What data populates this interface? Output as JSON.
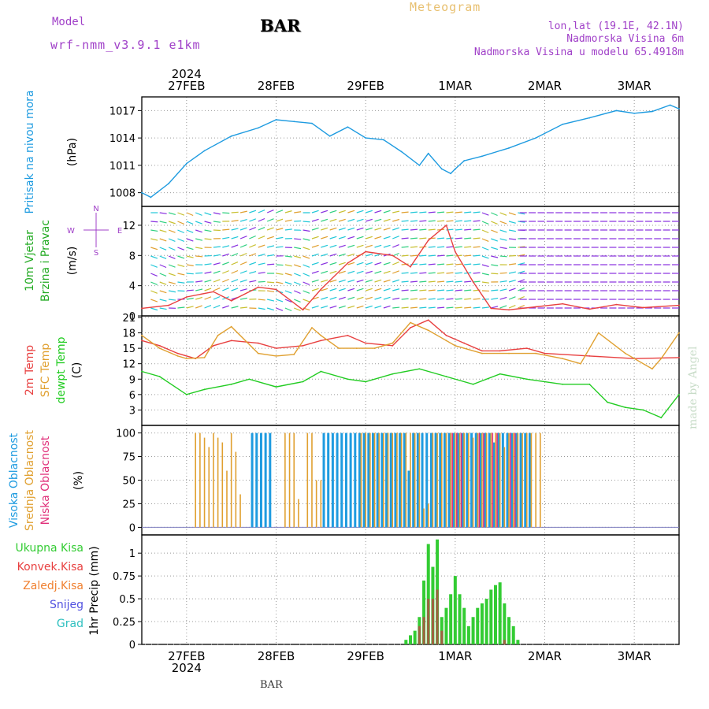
{
  "header": {
    "model_label": "Model",
    "model_name": "wrf-nmm_v3.9.1 e1km",
    "station": "BAR",
    "title": "Meteogram",
    "lonlat": "lon,lat (19.1E, 42.1N)",
    "elevation": "Nadmorska Visina 6m",
    "model_elevation": "Nadmorska Visina u modelu 65.4918m"
  },
  "watermark": "made by Angel",
  "footer_station": "BAR",
  "time_axis": {
    "year": "2024",
    "labels": [
      "27FEB",
      "28FEB",
      "29FEB",
      "1MAR",
      "2MAR",
      "3MAR"
    ],
    "start_day": 26.5,
    "end_day": 32.5
  },
  "colors": {
    "pressure": "#1e9be0",
    "temp2m": "#e84040",
    "sfc_temp": "#e0a030",
    "dewpt": "#22cc22",
    "high_cloud": "#1e9be0",
    "mid_cloud": "#e0a030",
    "low_cloud": "#e0307a",
    "total_precip": "#33cc33",
    "conv_precip": "#e84040",
    "frozen_precip": "#f08030",
    "snow": "#5050e0",
    "hail": "#30c0c0",
    "wind_speed": "#e84040"
  },
  "panels": {
    "pressure": {
      "label": "Pritisak na nivou mora",
      "unit": "(hPa)",
      "yticks": [
        "1008",
        "1011",
        "1014",
        "1017"
      ],
      "ylim": [
        1006.5,
        1018.5
      ]
    },
    "wind": {
      "label1": "10m Vjetar",
      "label2": "Brzina i Pravac",
      "unit": "(m/s)",
      "yticks": [
        "0",
        "4",
        "8",
        "12"
      ],
      "ylim": [
        0,
        14.5
      ],
      "compass": {
        "n": "N",
        "s": "S",
        "e": "E",
        "w": "W"
      }
    },
    "temperature": {
      "label1": "2m Temp",
      "label2": "SFC Temp",
      "label3": "dewpt Temp",
      "unit": "(C)",
      "yticks": [
        "3",
        "6",
        "9",
        "12",
        "15",
        "18",
        "21"
      ],
      "ylim": [
        0,
        21.3
      ]
    },
    "clouds": {
      "label1": "Visoka Oblacnost",
      "label2": "Srednja Oblacnost",
      "label3": "Niska Oblacnost",
      "unit": "(%)",
      "yticks": [
        "0",
        "25",
        "50",
        "75",
        "100"
      ],
      "ylim": [
        -8,
        108
      ]
    },
    "precip": {
      "legend": [
        "Ukupna Kisa",
        "Konvek.Kisa",
        "Zaledj.Kisa",
        "Snijeg",
        "Grad"
      ],
      "unit": "1hr Precip (mm)",
      "yticks": [
        "0",
        "0.25",
        "0.5",
        "0.75",
        "1"
      ],
      "ylim": [
        0,
        1.2
      ]
    }
  },
  "chart_data": [
    {
      "type": "line",
      "name": "Pritisak na nivou mora",
      "x_unit": "day of Feb 2024",
      "x": [
        26.5,
        26.6,
        26.8,
        27.0,
        27.2,
        27.5,
        27.8,
        28.0,
        28.2,
        28.4,
        28.6,
        28.8,
        29.0,
        29.2,
        29.4,
        29.6,
        29.7,
        29.85,
        29.95,
        30.0,
        30.1,
        30.3,
        30.6,
        30.9,
        31.2,
        31.5,
        31.8,
        32.0,
        32.2,
        32.4,
        32.5
      ],
      "y": [
        1008,
        1007.5,
        1009,
        1011.2,
        1012.6,
        1014.2,
        1015.1,
        1016.0,
        1015.8,
        1015.6,
        1014.2,
        1015.2,
        1014.0,
        1013.8,
        1012.5,
        1011.0,
        1012.3,
        1010.6,
        1010.1,
        1010.6,
        1011.5,
        1012.0,
        1012.9,
        1014.0,
        1015.5,
        1016.2,
        1017.0,
        1016.7,
        1016.9,
        1017.6,
        1017.2
      ]
    },
    {
      "type": "line",
      "name": "10m Vjetar Brzina",
      "x": [
        26.5,
        26.8,
        27.0,
        27.3,
        27.5,
        27.8,
        28.0,
        28.3,
        28.5,
        28.8,
        29.0,
        29.3,
        29.5,
        29.7,
        29.9,
        30.0,
        30.2,
        30.4,
        30.6,
        30.9,
        31.2,
        31.5,
        31.8,
        32.1,
        32.5
      ],
      "y": [
        1.0,
        1.4,
        2.5,
        3.2,
        2.0,
        3.8,
        3.5,
        0.8,
        3.5,
        7.0,
        8.5,
        8.0,
        6.5,
        10.0,
        12.0,
        8.5,
        4.5,
        1.0,
        0.8,
        1.2,
        1.6,
        0.9,
        1.5,
        1.1,
        1.4
      ]
    },
    {
      "type": "line",
      "series": [
        {
          "name": "2m Temp",
          "x": [
            26.5,
            26.7,
            26.9,
            27.1,
            27.3,
            27.5,
            27.8,
            28.0,
            28.3,
            28.5,
            28.8,
            29.0,
            29.3,
            29.5,
            29.7,
            29.9,
            30.1,
            30.3,
            30.5,
            30.8,
            31.0,
            31.5,
            32.0,
            32.5
          ],
          "y": [
            16.5,
            15.5,
            14.0,
            13.0,
            15.5,
            16.5,
            16.0,
            15.0,
            15.5,
            16.5,
            17.5,
            16.0,
            15.5,
            19.0,
            20.5,
            17.5,
            16.0,
            14.5,
            14.5,
            15.0,
            14.0,
            13.5,
            13.0,
            13.2
          ]
        },
        {
          "name": "SFC Temp",
          "x": [
            26.5,
            26.7,
            26.9,
            27.0,
            27.2,
            27.35,
            27.5,
            27.8,
            28.0,
            28.2,
            28.4,
            28.5,
            28.7,
            28.9,
            29.1,
            29.3,
            29.5,
            29.7,
            29.9,
            30.0,
            30.3,
            30.6,
            30.9,
            31.2,
            31.4,
            31.6,
            31.9,
            32.2,
            32.3,
            32.5
          ],
          "y": [
            17.5,
            15.0,
            13.5,
            13.0,
            13.2,
            17.5,
            19.2,
            14.0,
            13.5,
            13.8,
            19.0,
            17.5,
            15.0,
            15.0,
            15.0,
            16.0,
            20.0,
            18.5,
            16.5,
            15.5,
            14.0,
            14.0,
            14.0,
            13.0,
            12.0,
            18.0,
            14.0,
            11.0,
            13.0,
            18.0
          ]
        },
        {
          "name": "dewpt Temp",
          "x": [
            26.5,
            26.7,
            27.0,
            27.2,
            27.5,
            27.7,
            28.0,
            28.3,
            28.5,
            28.8,
            29.0,
            29.3,
            29.6,
            29.9,
            30.2,
            30.5,
            30.8,
            31.2,
            31.5,
            31.7,
            31.9,
            32.1,
            32.3,
            32.5
          ],
          "y": [
            10.5,
            9.5,
            6.0,
            7.0,
            8.0,
            9.0,
            7.5,
            8.5,
            10.5,
            9.0,
            8.5,
            10.0,
            11.0,
            9.5,
            8.0,
            10.0,
            9.0,
            8.0,
            8.0,
            4.5,
            3.5,
            3.0,
            1.5,
            6.0
          ]
        }
      ]
    },
    {
      "type": "bar",
      "name": "Oblacnost",
      "series": [
        {
          "name": "Visoka Oblacnost",
          "x": [
            27.1,
            27.2,
            27.3,
            27.4,
            27.45,
            27.5,
            27.55,
            27.6,
            27.65,
            27.7,
            27.75,
            27.8,
            27.85,
            27.9,
            27.95,
            28.0,
            28.05,
            28.1,
            28.3,
            28.35,
            28.4,
            28.45,
            28.5,
            28.55,
            28.6,
            28.65,
            28.7,
            28.75,
            28.8,
            28.85,
            28.9,
            28.95,
            29.0,
            29.05,
            29.1,
            29.15,
            29.2,
            29.25,
            29.3,
            29.35,
            29.4,
            29.45,
            29.5,
            29.55,
            29.6,
            29.65,
            29.7,
            29.75,
            29.8,
            29.85,
            29.9,
            29.95,
            30.0,
            30.05,
            30.1,
            30.15,
            30.2,
            30.25,
            30.3,
            30.35,
            30.4,
            30.45,
            30.5,
            30.55,
            30.6,
            30.65,
            30.7,
            30.75,
            30.8,
            30.85
          ],
          "y": [
            0,
            0,
            0,
            0,
            0,
            0,
            0,
            0,
            0,
            0,
            100,
            100,
            100,
            100,
            100,
            0,
            0,
            0,
            0,
            0,
            0,
            0,
            0,
            100,
            100,
            100,
            100,
            100,
            100,
            100,
            100,
            100,
            100,
            100,
            100,
            100,
            100,
            100,
            100,
            100,
            100,
            100,
            60,
            100,
            100,
            100,
            100,
            100,
            100,
            100,
            100,
            100,
            100,
            100,
            100,
            100,
            100,
            100,
            100,
            100,
            100,
            90,
            100,
            100,
            100,
            100,
            100,
            100,
            100,
            100
          ]
        },
        {
          "name": "Srednja Oblacnost",
          "x": [
            27.1,
            27.15,
            27.2,
            27.25,
            27.3,
            27.35,
            27.4,
            27.45,
            27.5,
            27.55,
            27.6,
            27.65,
            28.1,
            28.15,
            28.2,
            28.25,
            28.3,
            28.35,
            28.4,
            28.45,
            28.5,
            28.55,
            28.6,
            28.65,
            28.7,
            28.75,
            28.8,
            28.85,
            28.9,
            28.95,
            29.0,
            29.05,
            29.1,
            29.15,
            29.2,
            29.25,
            29.3,
            29.35,
            29.4,
            29.45,
            29.5,
            29.55,
            29.6,
            29.65,
            29.7,
            29.75,
            29.8,
            29.85,
            29.9,
            29.95,
            30.0,
            30.05,
            30.1,
            30.15,
            30.2,
            30.25,
            30.3,
            30.35,
            30.4,
            30.45,
            30.5,
            30.55,
            30.6,
            30.65,
            30.7,
            30.75,
            30.8,
            30.85,
            30.9,
            30.95
          ],
          "y": [
            100,
            100,
            95,
            85,
            100,
            95,
            90,
            60,
            100,
            80,
            35,
            0,
            100,
            100,
            100,
            30,
            0,
            100,
            100,
            50,
            50,
            0,
            0,
            0,
            0,
            0,
            0,
            0,
            0,
            100,
            100,
            100,
            100,
            100,
            100,
            100,
            100,
            100,
            100,
            100,
            100,
            100,
            100,
            20,
            25,
            100,
            100,
            100,
            100,
            100,
            100,
            100,
            100,
            100,
            95,
            100,
            100,
            100,
            100,
            100,
            100,
            85,
            100,
            100,
            100,
            100,
            100,
            100,
            100,
            100
          ]
        },
        {
          "name": "Niska Oblacnost",
          "x": [
            29.95,
            30.0,
            30.05,
            30.25,
            30.3,
            30.4,
            30.45,
            30.6,
            30.65
          ],
          "y": [
            100,
            100,
            100,
            100,
            100,
            100,
            100,
            100,
            100
          ]
        }
      ],
      "ylim": [
        0,
        100
      ]
    },
    {
      "type": "bar",
      "name": "1hr Precip",
      "series": [
        {
          "name": "Ukupna Kisa",
          "x": [
            29.45,
            29.5,
            29.55,
            29.6,
            29.65,
            29.7,
            29.75,
            29.8,
            29.85,
            29.9,
            29.95,
            30.0,
            30.05,
            30.1,
            30.15,
            30.2,
            30.25,
            30.3,
            30.35,
            30.4,
            30.45,
            30.5,
            30.55,
            30.6,
            30.65,
            30.7
          ],
          "y": [
            0.05,
            0.1,
            0.15,
            0.3,
            0.7,
            1.1,
            0.85,
            1.15,
            0.3,
            0.4,
            0.55,
            0.75,
            0.55,
            0.4,
            0.2,
            0.3,
            0.4,
            0.45,
            0.5,
            0.6,
            0.65,
            0.68,
            0.45,
            0.3,
            0.2,
            0.05
          ]
        },
        {
          "name": "Konvek.Kisa",
          "x": [
            29.6,
            29.65,
            29.7,
            29.75,
            29.8,
            29.85,
            30.55
          ],
          "y": [
            0.2,
            0.3,
            0.5,
            0.5,
            0.6,
            0.15,
            0.05
          ]
        }
      ],
      "ylim": [
        0,
        1.2
      ]
    }
  ]
}
